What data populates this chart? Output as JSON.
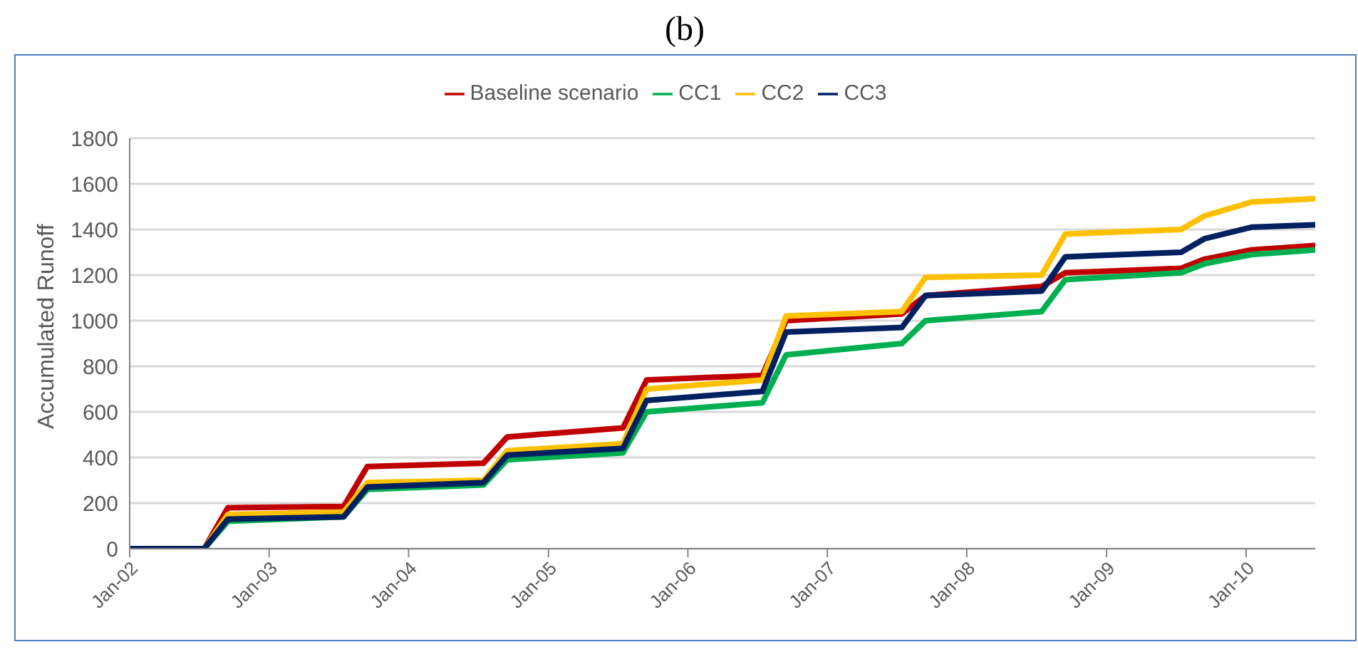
{
  "chart_data": {
    "type": "line",
    "title": "(b)",
    "ylabel": "Accumulated Runoff",
    "x": [
      "2002-01-01",
      "2002-07-15",
      "2002-09-15",
      "2003-07-15",
      "2003-09-15",
      "2004-07-15",
      "2004-09-15",
      "2005-07-15",
      "2005-09-15",
      "2006-07-15",
      "2006-09-15",
      "2007-07-15",
      "2007-09-15",
      "2008-07-15",
      "2008-09-15",
      "2009-07-15",
      "2009-09-15",
      "2010-01-15",
      "2010-07-01"
    ],
    "series": [
      {
        "name": "Baseline scenario",
        "color": "#c00000",
        "values": [
          0,
          0,
          180,
          185,
          360,
          375,
          490,
          530,
          740,
          760,
          1000,
          1030,
          1110,
          1150,
          1210,
          1230,
          1270,
          1310,
          1330
        ]
      },
      {
        "name": "CC1",
        "color": "#00b050",
        "values": [
          0,
          0,
          120,
          140,
          260,
          280,
          390,
          420,
          600,
          640,
          850,
          900,
          1000,
          1040,
          1180,
          1210,
          1250,
          1290,
          1310
        ]
      },
      {
        "name": "CC2",
        "color": "#ffc000",
        "values": [
          0,
          0,
          150,
          160,
          290,
          300,
          430,
          460,
          700,
          740,
          1020,
          1040,
          1190,
          1200,
          1380,
          1400,
          1460,
          1520,
          1535
        ]
      },
      {
        "name": "CC3",
        "color": "#002060",
        "values": [
          0,
          0,
          130,
          140,
          270,
          290,
          410,
          440,
          650,
          690,
          950,
          970,
          1110,
          1130,
          1280,
          1300,
          1360,
          1410,
          1420
        ]
      }
    ],
    "xlim": [
      "2002-01-01",
      "2010-07-01"
    ],
    "xticks": [
      {
        "value": "2002-01-01",
        "label": "Jan-02"
      },
      {
        "value": "2003-01-01",
        "label": "Jan-03"
      },
      {
        "value": "2004-01-01",
        "label": "Jan-04"
      },
      {
        "value": "2005-01-01",
        "label": "Jan-05"
      },
      {
        "value": "2006-01-01",
        "label": "Jan-06"
      },
      {
        "value": "2007-01-01",
        "label": "Jan-07"
      },
      {
        "value": "2008-01-01",
        "label": "Jan-08"
      },
      {
        "value": "2009-01-01",
        "label": "Jan-09"
      },
      {
        "value": "2010-01-01",
        "label": "Jan-10"
      }
    ],
    "ylim": [
      0,
      1800
    ],
    "yticks": [
      0,
      200,
      400,
      600,
      800,
      1000,
      1200,
      1400,
      1600,
      1800
    ],
    "grid": "y",
    "legend": "top",
    "marker": "none",
    "line_style": "solid"
  }
}
